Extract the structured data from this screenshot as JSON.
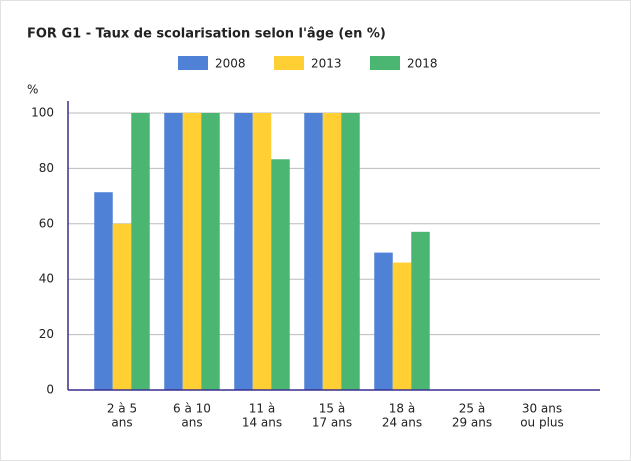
{
  "chart_data": {
    "type": "bar",
    "title": "FOR G1 - Taux de scolarisation selon l'âge (en %)",
    "y_label": "%",
    "categories": [
      [
        "2 à 5",
        "ans"
      ],
      [
        "6 à 10",
        "ans"
      ],
      [
        "11 à",
        "14 ans"
      ],
      [
        "15 à",
        "17 ans"
      ],
      [
        "18 à",
        "24 ans"
      ],
      [
        "25 à",
        "29 ans"
      ],
      [
        "30 ans",
        "ou plus"
      ]
    ],
    "series": [
      {
        "name": "2008",
        "color": "#4f81d6",
        "values": [
          71.4,
          100,
          100,
          100,
          49.6,
          0.2,
          0.1
        ]
      },
      {
        "name": "2013",
        "color": "#ffcf33",
        "values": [
          60,
          100,
          100,
          100,
          46,
          0.1,
          0.2
        ]
      },
      {
        "name": "2018",
        "color": "#4bb572",
        "values": [
          100,
          100,
          83.3,
          100,
          57.1,
          0.1,
          0.1
        ]
      }
    ],
    "ylim": [
      0,
      100
    ],
    "yticks": [
      0,
      20,
      40,
      60,
      80,
      100
    ],
    "grid": true,
    "legend": "top"
  }
}
